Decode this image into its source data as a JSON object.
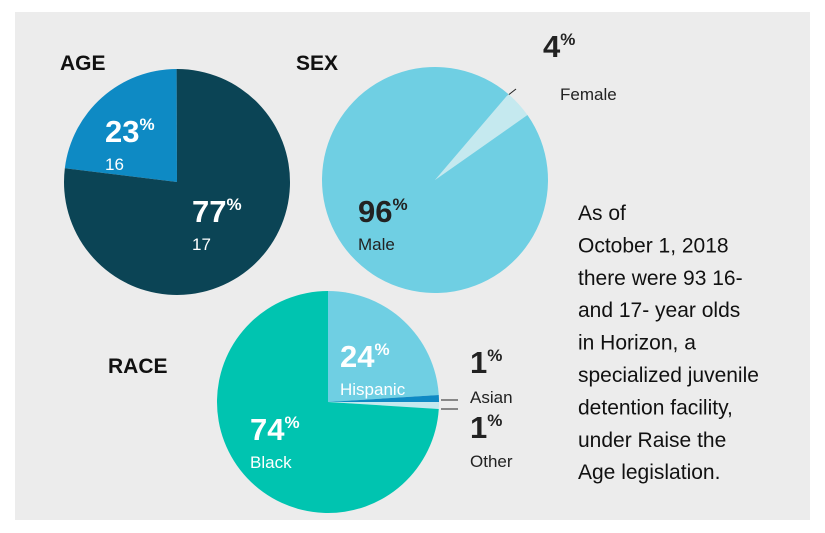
{
  "chart_data": [
    {
      "type": "pie",
      "title": "AGE",
      "unit": "%",
      "categories": [
        "16",
        "17"
      ],
      "values": [
        23,
        77
      ],
      "colors": [
        "#0e8ac4",
        "#0b4455"
      ]
    },
    {
      "type": "pie",
      "title": "SEX",
      "unit": "%",
      "categories": [
        "Female",
        "Male"
      ],
      "values": [
        4,
        96
      ],
      "colors": [
        "#c5e9ef",
        "#6fcfe3"
      ]
    },
    {
      "type": "pie",
      "title": "RACE",
      "unit": "%",
      "categories": [
        "Hispanic",
        "Asian",
        "Other",
        "Black"
      ],
      "values": [
        24,
        1,
        1,
        74
      ],
      "colors": [
        "#6fcfe3",
        "#0e8ac4",
        "#c5e9ef",
        "#00c4b0"
      ]
    }
  ],
  "annotation": {
    "lines": [
      "As of",
      "October 1, 2018",
      "there were 93 16-",
      "and 17- year olds",
      "in Horizon, a",
      "specialized juvenile",
      "detention facility,",
      "under Raise the",
      "Age legislation."
    ]
  }
}
